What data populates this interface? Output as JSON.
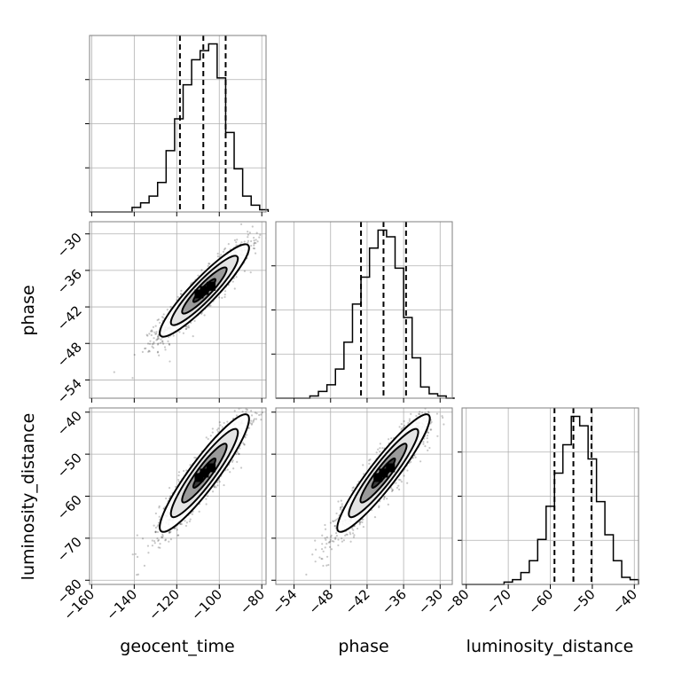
{
  "chart_data": {
    "type": "corner",
    "parameters": [
      "geocent_time",
      "phase",
      "luminosity_distance"
    ],
    "axes": {
      "geocent_time": {
        "label": "geocent_time",
        "range": [
          -161,
          -78
        ],
        "ticks": [
          -160,
          -140,
          -120,
          -100,
          -80
        ]
      },
      "phase": {
        "label": "phase",
        "range": [
          -57,
          -28
        ],
        "ticks": [
          -54,
          -48,
          -42,
          -36,
          -30
        ]
      },
      "luminosity_distance": {
        "label": "luminosity_distance",
        "range": [
          -81,
          -39
        ],
        "ticks": [
          -80,
          -70,
          -60,
          -50,
          -40
        ]
      }
    },
    "marginals": [
      {
        "parameter": "geocent_time",
        "quantiles": [
          -118.5,
          -107.5,
          -97
        ],
        "bin_edges": [
          -161,
          -157,
          -153,
          -149,
          -145,
          -141,
          -137,
          -133,
          -129,
          -125,
          -121,
          -117,
          -113,
          -109,
          -105,
          -101,
          -97,
          -93,
          -89,
          -85,
          -81,
          -77
        ],
        "counts": [
          0,
          0,
          0,
          0,
          0,
          2,
          4,
          7,
          13,
          27,
          41,
          56,
          67,
          71,
          74,
          59,
          35,
          19,
          7,
          3,
          1
        ]
      },
      {
        "parameter": "phase",
        "quantiles": [
          -43,
          -39.3,
          -35.6
        ],
        "bin_edges": [
          -57,
          -55.6,
          -54.2,
          -52.8,
          -51.4,
          -50,
          -48.6,
          -47.2,
          -45.8,
          -44.4,
          -43,
          -41.6,
          -40.2,
          -38.8,
          -37.4,
          -36,
          -34.6,
          -33.2,
          -31.8,
          -30.4,
          -29,
          -27.6
        ],
        "counts": [
          0,
          0,
          0,
          0,
          1,
          3,
          6,
          13,
          25,
          42,
          54,
          67,
          75,
          72,
          58,
          36,
          18,
          5,
          2,
          1,
          0
        ]
      },
      {
        "parameter": "luminosity_distance",
        "quantiles": [
          -59,
          -54.5,
          -50.2
        ],
        "bin_edges": [
          -81,
          -79,
          -77,
          -75,
          -73,
          -71,
          -69,
          -67,
          -65,
          -63,
          -61,
          -59,
          -57,
          -55,
          -53,
          -51,
          -49,
          -47,
          -45,
          -43,
          -41,
          -39
        ],
        "counts": [
          0,
          0,
          0,
          0,
          0,
          1,
          2,
          5,
          10,
          19,
          33,
          47,
          59,
          71,
          67,
          53,
          35,
          21,
          10,
          3,
          2
        ]
      }
    ],
    "joint": [
      {
        "x": "geocent_time",
        "y": "phase",
        "mean": [
          -107,
          -39.3
        ],
        "std": [
          10.5,
          3.8
        ],
        "corr": 0.92,
        "contour_levels_sigma": [
          0.5,
          1,
          1.5,
          2
        ]
      },
      {
        "x": "geocent_time",
        "y": "luminosity_distance",
        "mean": [
          -107,
          -54.5
        ],
        "std": [
          10.5,
          7.0
        ],
        "corr": 0.92,
        "contour_levels_sigma": [
          0.5,
          1,
          1.5,
          2
        ]
      },
      {
        "x": "phase",
        "y": "luminosity_distance",
        "mean": [
          -39.3,
          -54.5
        ],
        "std": [
          3.8,
          7.0
        ],
        "corr": 0.93,
        "contour_levels_sigma": [
          0.5,
          1,
          1.5,
          2
        ]
      }
    ],
    "xlabels": [
      "geocent_time",
      "phase",
      "luminosity_distance"
    ],
    "ylabels": [
      "phase",
      "luminosity_distance"
    ],
    "grid": true
  }
}
